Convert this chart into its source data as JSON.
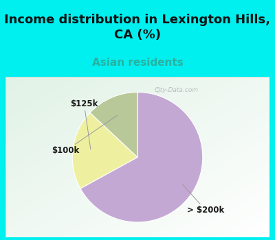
{
  "title": "Income distribution in Lexington Hills,\nCA (%)",
  "subtitle": "Asian residents",
  "title_fontsize": 13,
  "subtitle_fontsize": 11,
  "title_color": "#111111",
  "subtitle_color": "#2ab0a0",
  "bg_color_top": "#00f0f0",
  "chart_bg_colors": [
    "#b8ddc8",
    "#e8f5ee",
    "#f5fbf8",
    "#e0f2ea"
  ],
  "slices": [
    {
      "label": "> $200k",
      "value": 67,
      "color": "#c4a8d4"
    },
    {
      "label": "$125k",
      "value": 20,
      "color": "#eef0a0"
    },
    {
      "label": "$100k",
      "value": 13,
      "color": "#b8c898"
    }
  ],
  "label_fontsize": 8.5,
  "watermark": "City-Data.com",
  "startangle": 90,
  "counterclock": false
}
